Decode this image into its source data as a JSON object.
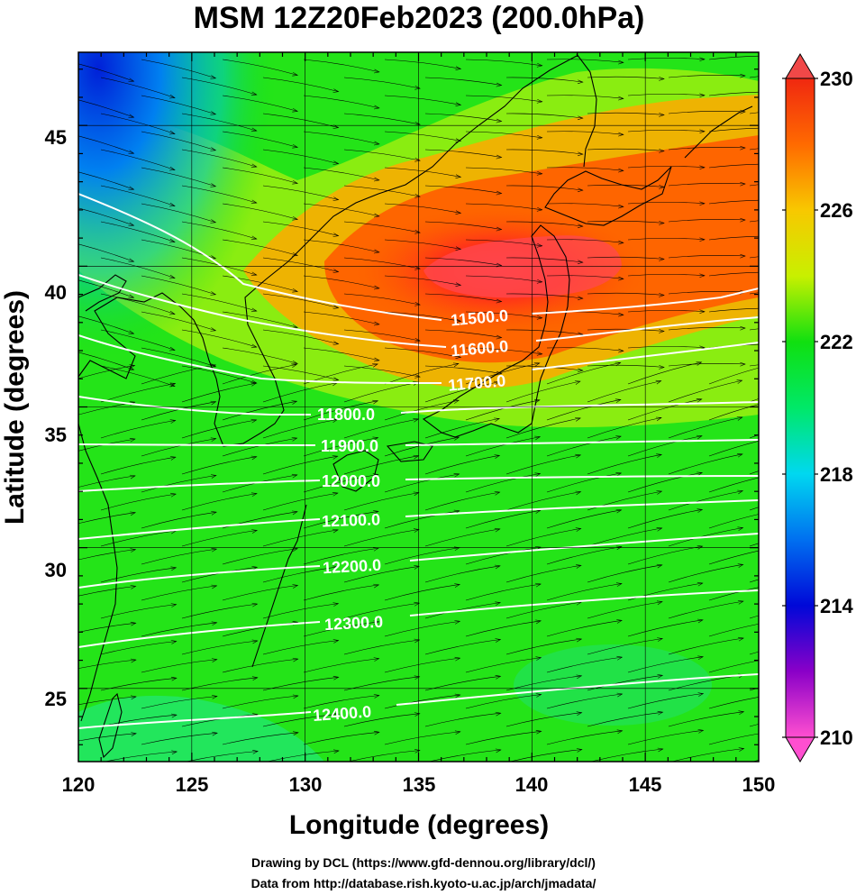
{
  "title": "MSM 12Z20Feb2023 (200.0hPa)",
  "map": {
    "x_label": "Longitude (degrees)",
    "y_label": "Latitude  (degrees)",
    "lon_range": [
      120,
      150
    ],
    "lat_range": [
      22.4,
      47.6
    ],
    "lon_ticks": [
      "120",
      "125",
      "130",
      "135",
      "140",
      "145",
      "150"
    ],
    "lat_ticks": [
      "25",
      "30",
      "35",
      "40",
      "45"
    ],
    "lon_tick_values": [
      120,
      125,
      130,
      135,
      140,
      145,
      150
    ],
    "lat_tick_values": [
      25,
      30,
      35,
      40,
      45
    ],
    "contours": [
      {
        "label": "11500.0"
      },
      {
        "label": "11600.0"
      },
      {
        "label": "11700.0"
      },
      {
        "label": "11800.0"
      },
      {
        "label": "11900.0"
      },
      {
        "label": "12000.0"
      },
      {
        "label": "12100.0"
      },
      {
        "label": "12200.0"
      },
      {
        "label": "12300.0"
      },
      {
        "label": "12400.0"
      }
    ]
  },
  "colorbar": {
    "min": 210,
    "max": 230,
    "tick_labels": [
      "230",
      "226",
      "222",
      "218",
      "214",
      "210"
    ],
    "tick_values": [
      230,
      226,
      222,
      218,
      214,
      210
    ],
    "colors": [
      "#ff4fd0",
      "#8a00c8",
      "#0008d8",
      "#0070f0",
      "#00d8f0",
      "#00e868",
      "#10e010",
      "#c8f000",
      "#f8c800",
      "#ff6a00",
      "#f02810"
    ]
  },
  "credits": {
    "line1": "Drawing by DCL (https://www.gfd-dennou.org/library/dcl/)",
    "line2": "Data from http://database.rish.kyoto-u.ac.jp/arch/jmadata/"
  }
}
